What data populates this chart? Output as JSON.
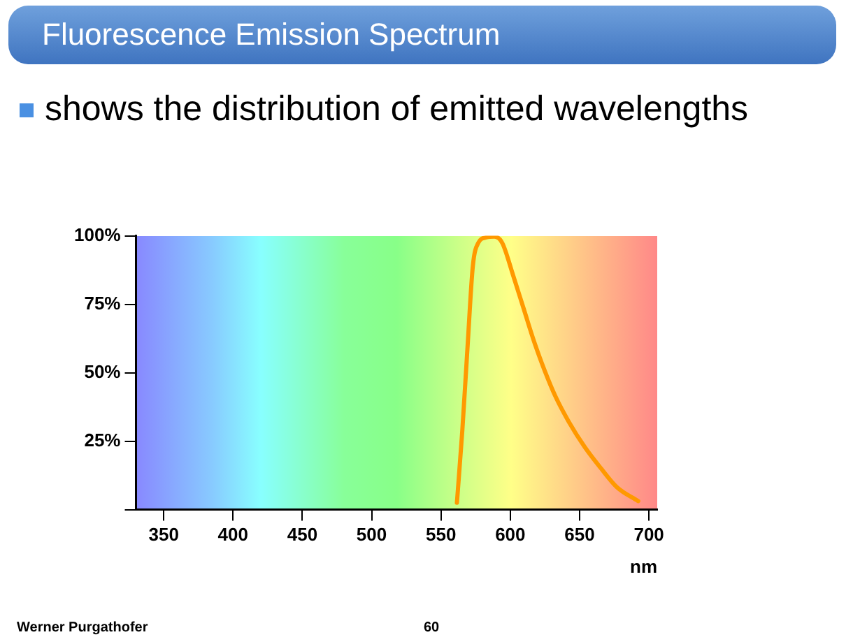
{
  "chart_data": {
    "type": "line",
    "title": "Fluorescence Emission Spectrum",
    "subtitle": "shows the distribution of emitted wavelengths",
    "xlabel": "nm",
    "annotations": [
      "Werner Purgathofer",
      "60"
    ],
    "series": [
      {
        "color": "#ff9900",
        "x": [
          561.5,
          565.4,
          569.2,
          573,
          576.9,
          582.7,
          588.5,
          594.2,
          601.9,
          609.6,
          617.3,
          625,
          632.7,
          642.3,
          653.8,
          665.4,
          676.9,
          692.3
        ],
        "values": [
          2.5,
          28.9,
          59.7,
          89,
          97.4,
          99.4,
          99.7,
          97.4,
          85.8,
          73.5,
          61.2,
          50.5,
          41.2,
          32,
          22.8,
          15.1,
          8.2,
          3.1
        ]
      }
    ],
    "xlim": [
      330,
      706
    ],
    "xticks": [
      350,
      400,
      450,
      500,
      550,
      600,
      650,
      700
    ],
    "ylim": [
      0,
      100
    ],
    "yticks": [
      {
        "value": 0,
        "label": null
      },
      {
        "value": 25,
        "label": "25%"
      },
      {
        "value": 50,
        "label": "50%"
      },
      {
        "value": 75,
        "label": "75%"
      },
      {
        "value": 100,
        "label": "100%"
      }
    ],
    "grid": false,
    "legend": false,
    "marker": "none",
    "line_style": "solid"
  }
}
